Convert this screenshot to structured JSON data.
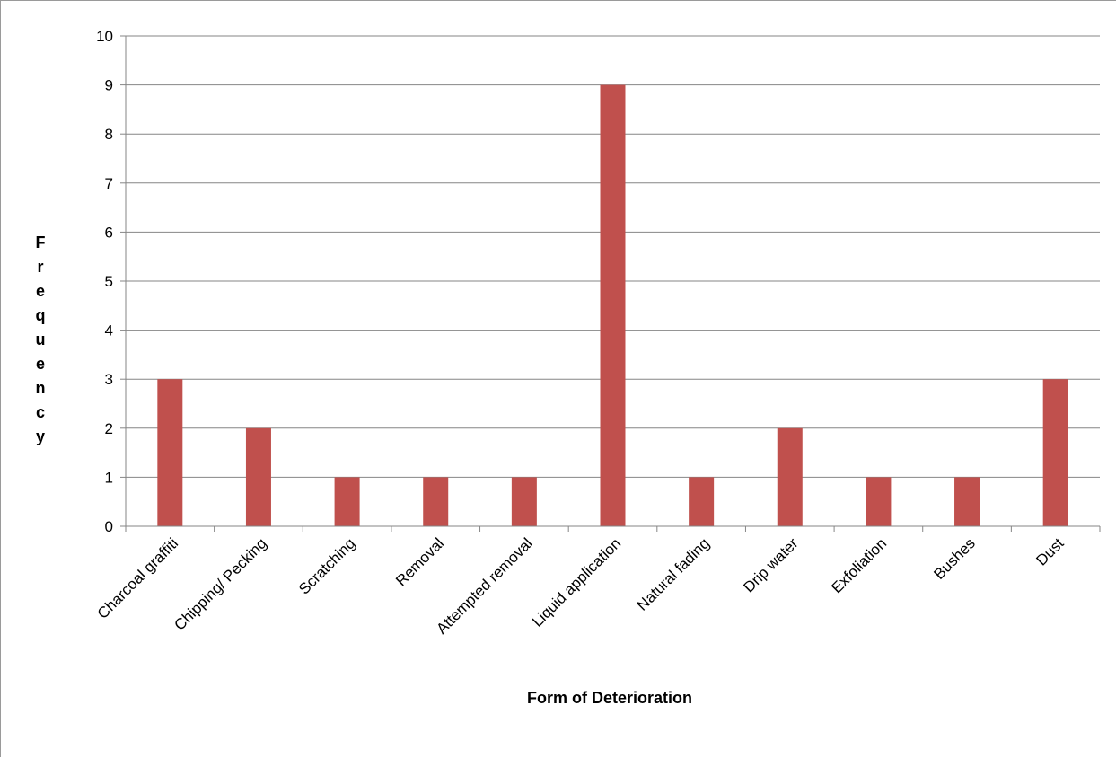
{
  "chart_data": {
    "type": "bar",
    "title": "",
    "xlabel": "Form of Deterioration",
    "ylabel": "Frequency",
    "categories": [
      "Charcoal graffiti",
      "Chipping/ Pecking",
      "Scratching",
      "Removal",
      "Attempted removal",
      "Liquid application",
      "Natural fading",
      "Drip water",
      "Exfoliation",
      "Bushes",
      "Dust"
    ],
    "values": [
      3,
      2,
      1,
      1,
      1,
      9,
      1,
      2,
      1,
      1,
      3
    ],
    "ylim": [
      0,
      10
    ],
    "yticks": [
      "0",
      "1",
      "2",
      "3",
      "4",
      "5",
      "6",
      "7",
      "8",
      "9",
      "10"
    ],
    "grid": true,
    "legend": "none",
    "colors": {
      "bar": "#c0504d",
      "grid": "#868686",
      "axis": "#868686",
      "frame": "#9a9a9a"
    }
  }
}
